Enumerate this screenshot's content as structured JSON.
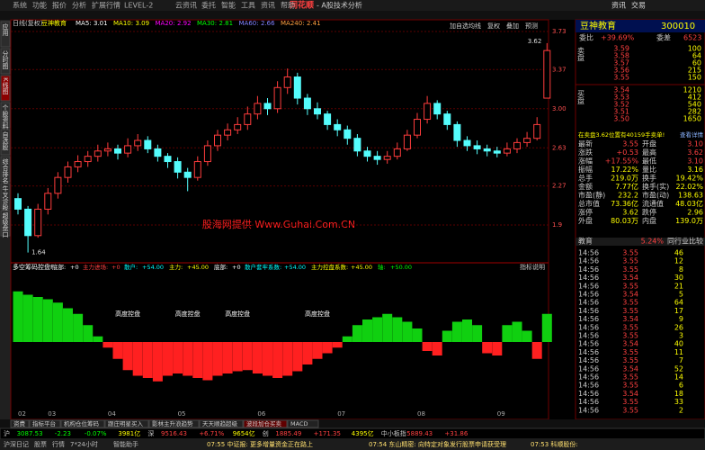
{
  "window": {
    "menu": [
      "系统",
      "功能",
      "报价",
      "分析",
      "扩展行情",
      "LEVEL-2",
      "云资讯",
      "委托",
      "智能",
      "工具",
      "资讯",
      "帮助"
    ],
    "brand": "同花顺",
    "subtitle": "- A股技术分析",
    "top_right": [
      "资讯",
      "交易"
    ]
  },
  "sidebar": [
    "应用",
    "分时图",
    "K线图",
    "个股资料",
    "自选股",
    "综合排名",
    "牛叉诊股",
    "超级盘口"
  ],
  "chart_data": [
    {
      "type": "candlestick",
      "title": "日线(复权)",
      "stock": "豆神教育",
      "ma_labels": [
        {
          "label": "MA5:",
          "value": 3.01,
          "color": "#ffffff"
        },
        {
          "label": "MA10:",
          "value": 3.09,
          "color": "#ffff00"
        },
        {
          "label": "MA20:",
          "value": 2.92,
          "color": "#ff00ff"
        },
        {
          "label": "MA30:",
          "value": 2.81,
          "color": "#00ff00"
        },
        {
          "label": "MA60:",
          "value": 2.66,
          "color": "#8080ff"
        },
        {
          "label": "MA240:",
          "value": 2.41,
          "color": "#ffa040"
        }
      ],
      "buttons": [
        "加自选",
        "均线",
        "复权",
        "叠加",
        "预测"
      ],
      "up_color": "#ff3c3c",
      "down_color": "#54fcfc",
      "ohlc": [
        [
          2.15,
          2.2,
          2.0,
          2.05
        ],
        [
          2.05,
          2.08,
          1.64,
          1.8
        ],
        [
          1.8,
          2.1,
          1.78,
          2.05
        ],
        [
          2.05,
          2.25,
          2.0,
          2.2
        ],
        [
          2.2,
          2.4,
          2.15,
          2.35
        ],
        [
          2.35,
          2.5,
          2.3,
          2.45
        ],
        [
          2.45,
          2.56,
          2.4,
          2.5
        ],
        [
          2.5,
          2.6,
          2.45,
          2.55
        ],
        [
          2.55,
          2.66,
          2.5,
          2.6
        ],
        [
          2.6,
          2.68,
          2.55,
          2.62
        ],
        [
          2.62,
          2.66,
          2.52,
          2.58
        ],
        [
          2.58,
          2.72,
          2.54,
          2.65
        ],
        [
          2.65,
          2.76,
          2.6,
          2.7
        ],
        [
          2.7,
          2.74,
          2.58,
          2.62
        ],
        [
          2.62,
          2.66,
          2.5,
          2.55
        ],
        [
          2.55,
          2.58,
          2.44,
          2.5
        ],
        [
          2.5,
          2.54,
          2.34,
          2.4
        ],
        [
          2.4,
          2.44,
          2.22,
          2.35
        ],
        [
          2.35,
          2.55,
          2.32,
          2.5
        ],
        [
          2.5,
          2.7,
          2.46,
          2.65
        ],
        [
          2.65,
          2.8,
          2.6,
          2.75
        ],
        [
          2.75,
          2.86,
          2.7,
          2.8
        ],
        [
          2.8,
          2.92,
          2.76,
          2.85
        ],
        [
          2.85,
          3.02,
          2.8,
          2.95
        ],
        [
          2.95,
          3.12,
          2.9,
          3.05
        ],
        [
          3.05,
          3.1,
          2.94,
          3.0
        ],
        [
          3.0,
          3.26,
          2.96,
          3.2
        ],
        [
          3.2,
          3.38,
          3.14,
          3.3
        ],
        [
          3.3,
          3.34,
          3.04,
          3.1
        ],
        [
          3.1,
          3.14,
          2.94,
          3.0
        ],
        [
          3.0,
          3.06,
          2.9,
          2.95
        ],
        [
          2.95,
          2.98,
          2.8,
          2.85
        ],
        [
          2.85,
          2.9,
          2.74,
          2.8
        ],
        [
          2.8,
          2.84,
          2.66,
          2.72
        ],
        [
          2.72,
          2.76,
          2.55,
          2.6
        ],
        [
          2.6,
          2.64,
          2.5,
          2.55
        ],
        [
          2.55,
          2.6,
          2.47,
          2.52
        ],
        [
          2.52,
          2.6,
          2.48,
          2.55
        ],
        [
          2.55,
          2.68,
          2.52,
          2.62
        ],
        [
          2.62,
          2.8,
          2.6,
          2.75
        ],
        [
          2.75,
          2.96,
          2.72,
          2.9
        ],
        [
          2.9,
          3.12,
          2.86,
          3.05
        ],
        [
          3.05,
          3.08,
          2.9,
          2.95
        ],
        [
          2.95,
          2.98,
          2.8,
          2.85
        ],
        [
          2.85,
          2.88,
          2.64,
          2.7
        ],
        [
          2.7,
          2.74,
          2.6,
          2.65
        ],
        [
          2.65,
          2.7,
          2.57,
          2.62
        ],
        [
          2.62,
          2.66,
          2.55,
          2.6
        ],
        [
          2.6,
          2.64,
          2.54,
          2.58
        ],
        [
          2.58,
          2.68,
          2.55,
          2.62
        ],
        [
          2.62,
          2.72,
          2.58,
          2.68
        ],
        [
          2.68,
          2.78,
          2.64,
          2.72
        ],
        [
          2.72,
          2.92,
          2.7,
          2.85
        ],
        [
          3.1,
          3.62,
          3.1,
          3.55
        ]
      ],
      "x_labels": [
        "02",
        null,
        null,
        "03",
        null,
        null,
        null,
        null,
        null,
        "04",
        null,
        null,
        null,
        null,
        null,
        null,
        "05",
        null,
        null,
        null,
        null,
        null,
        null,
        null,
        "06",
        null,
        null,
        null,
        null,
        null,
        null,
        null,
        "07",
        null,
        null,
        null,
        null,
        null,
        null,
        null,
        "08",
        null,
        null,
        null,
        null,
        null,
        null,
        null,
        "09",
        null,
        null,
        null,
        null,
        null
      ],
      "ylim": [
        1.56,
        3.73
      ],
      "yticks": [
        3.73,
        3.37,
        {
          "value": 3,
          "label": "3.00"
        },
        2.63,
        2.27,
        1.9
      ],
      "grid": true,
      "watermark": "股海网提供 Www.Guhai.Com.CN"
    },
    {
      "type": "bar",
      "title": "多空筹码控盘F",
      "params": [
        {
          "name": "底部:",
          "text": "+0",
          "color": "#ffffff"
        },
        {
          "name": "主力进场:",
          "text": "+0",
          "color": "#ff4040"
        },
        {
          "name": "散户:",
          "text": "+54.00",
          "color": "#00ffff"
        },
        {
          "name": "主力:",
          "text": "+45.00",
          "color": "#ffff00"
        },
        {
          "name": "底部:",
          "text": "+0",
          "color": "#ffffff"
        },
        {
          "name": "散户套牢系数:",
          "text": "+54.00",
          "color": "#00ffff"
        },
        {
          "name": "主力控盘系数:",
          "text": "+45.00",
          "color": "#ffff00"
        },
        {
          "name": "轴:",
          "text": "+50.00",
          "color": "#00ff00"
        }
      ],
      "help": "指标说明",
      "pos_color": "#10d010",
      "neg_color": "#ff2020",
      "values": [
        45,
        42,
        40,
        38,
        35,
        30,
        25,
        15,
        5,
        -5,
        -15,
        -25,
        -30,
        -32,
        -35,
        -30,
        -28,
        -30,
        -32,
        -34,
        -30,
        -28,
        -26,
        -25,
        -28,
        -30,
        -32,
        -30,
        -26,
        -20,
        -15,
        -10,
        -5,
        5,
        15,
        20,
        22,
        25,
        22,
        18,
        12,
        -8,
        -12,
        10,
        18,
        20,
        15,
        -10,
        -12,
        15,
        18,
        10,
        -15,
        25
      ],
      "ylim": [
        -60,
        60
      ],
      "annotations": [
        "高度控盘",
        "高度控盘",
        "高度控盘",
        "高度控盘"
      ]
    }
  ],
  "tabs": [
    "资费",
    "指标平台",
    "机构仓位筹码",
    "跟庄明星买入",
    "影林主升浪趋势",
    "天天顺趋超级",
    "波段加仓买卖",
    "MACD"
  ],
  "quote_panel": {
    "name": "豆神教育",
    "code": "300010",
    "side_labels": [
      "卖盘",
      "买盘"
    ],
    "ratio": [
      {
        "t": "委比",
        "c": "#c8c8c8"
      },
      {
        "t": "+39.69%",
        "c": "#ff4040"
      },
      {
        "t": "委差",
        "c": "#c8c8c8"
      },
      {
        "t": "6523",
        "c": "#ff4040"
      }
    ],
    "sell": [
      [
        "3.59",
        "100"
      ],
      [
        "3.58",
        "64"
      ],
      [
        "3.57",
        "60"
      ],
      [
        "3.56",
        "215"
      ],
      [
        "3.55",
        "150"
      ]
    ],
    "buy": [
      [
        "3.54",
        "1210"
      ],
      [
        "3.53",
        "412"
      ],
      [
        "3.52",
        "540"
      ],
      [
        "3.51",
        "282"
      ],
      [
        "3.50",
        "1650"
      ]
    ],
    "notice": "在卖盘3.62位置有40159手卖单!",
    "notice_link": "查看详情",
    "stats": [
      [
        "最新",
        "3.55",
        "开盘",
        "3.10"
      ],
      [
        "涨跌",
        "+0.53",
        "最高",
        "3.62"
      ],
      [
        "涨幅",
        "+17.55%",
        "最低",
        "3.10"
      ],
      [
        "振幅",
        "17.22%",
        "量比",
        "3.16"
      ],
      [
        "总手",
        "219.0万",
        "换手",
        "19.42%"
      ],
      [
        "金额",
        "7.77亿",
        "换手(实)",
        "22.02%"
      ],
      [
        "市盈(静)",
        "232.2",
        "市盈(动)",
        "138.63"
      ],
      [
        "总市值",
        "73.36亿",
        "流通值",
        "48.03亿"
      ],
      [
        "涨停",
        "3.62",
        "跌停",
        "2.96"
      ],
      [
        "外盘",
        "80.03万",
        "内盘",
        "139.0万"
      ]
    ],
    "industry": [
      "教育",
      "5.24%",
      "同行业比较"
    ],
    "ticks": [
      [
        "14:56",
        "3.55",
        "46"
      ],
      [
        "14:56",
        "3.55",
        "12"
      ],
      [
        "14:56",
        "3.55",
        "8"
      ],
      [
        "14:56",
        "3.54",
        "30"
      ],
      [
        "14:56",
        "3.55",
        "21"
      ],
      [
        "14:56",
        "3.54",
        "5"
      ],
      [
        "14:56",
        "3.55",
        "64"
      ],
      [
        "14:56",
        "3.55",
        "17"
      ],
      [
        "14:56",
        "3.54",
        "9"
      ],
      [
        "14:56",
        "3.55",
        "26"
      ],
      [
        "14:56",
        "3.55",
        "3"
      ],
      [
        "14:56",
        "3.54",
        "40"
      ],
      [
        "14:56",
        "3.55",
        "11"
      ],
      [
        "14:56",
        "3.55",
        "7"
      ],
      [
        "14:56",
        "3.54",
        "52"
      ],
      [
        "14:56",
        "3.55",
        "14"
      ],
      [
        "14:56",
        "3.55",
        "6"
      ],
      [
        "14:56",
        "3.54",
        "18"
      ],
      [
        "14:56",
        "3.55",
        "33"
      ],
      [
        "14:56",
        "3.55",
        "2"
      ]
    ]
  },
  "status": [
    {
      "t": "沪",
      "c": "#c8c8c8"
    },
    {
      "t": "3087.53",
      "c": "#00ff00"
    },
    {
      "t": "-2.23",
      "c": "#00ff00"
    },
    {
      "t": "-0.07%",
      "c": "#00ff00"
    },
    {
      "t": "3981亿",
      "c": "#ffff00"
    },
    {
      "t": "深",
      "c": "#c8c8c8"
    },
    {
      "t": "9516.43",
      "c": "#ff4040"
    },
    {
      "t": "+6.71%",
      "c": "#ff4040"
    },
    {
      "t": "9654亿",
      "c": "#ffff00"
    },
    {
      "t": "创",
      "c": "#c8c8c8"
    },
    {
      "t": "1885.49",
      "c": "#ff4040"
    },
    {
      "t": "+171.35",
      "c": "#ff4040"
    },
    {
      "t": "4395亿",
      "c": "#ffff00"
    },
    {
      "t": "中小板指",
      "c": "#c8c8c8"
    },
    {
      "t": "5889.43",
      "c": "#ff4040"
    },
    {
      "t": "+31.86",
      "c": "#ff4040"
    }
  ],
  "footer": {
    "left": [
      "沪深日记",
      "股票",
      "行情",
      "7*24小时",
      "智能助手"
    ],
    "news": [
      "07:55 中证报: 更多增量资金正在路上",
      "07:54 东山精密: 向特定对象发行股票申请获受理",
      "07:53 科顺股份:"
    ]
  }
}
